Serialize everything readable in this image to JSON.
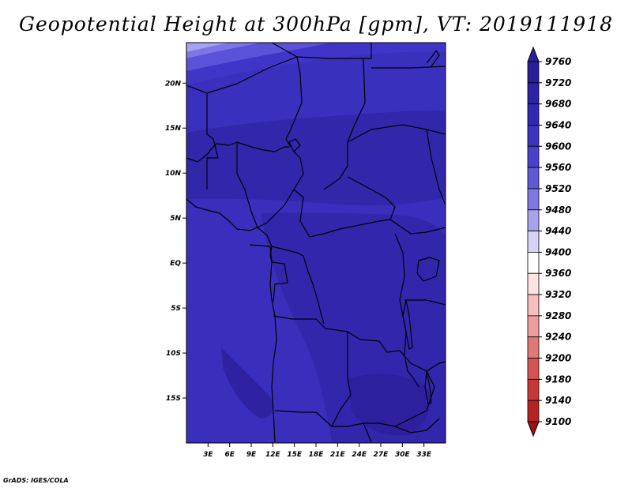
{
  "title": "Geopotential Height at 300hPa [gpm], VT: 2019111918",
  "credit": "GrADS: IGES/COLA",
  "map": {
    "lon_range": [
      0,
      36
    ],
    "lat_range": [
      -20,
      24.5
    ],
    "lat_ticks": [
      {
        "value": 20,
        "label": "20N"
      },
      {
        "value": 15,
        "label": "15N"
      },
      {
        "value": 10,
        "label": "10N"
      },
      {
        "value": 5,
        "label": "5N"
      },
      {
        "value": 0,
        "label": "EQ"
      },
      {
        "value": -5,
        "label": "5S"
      },
      {
        "value": -10,
        "label": "10S"
      },
      {
        "value": -15,
        "label": "15S"
      }
    ],
    "lon_ticks": [
      {
        "value": 3,
        "label": "3E"
      },
      {
        "value": 6,
        "label": "6E"
      },
      {
        "value": 9,
        "label": "9E"
      },
      {
        "value": 12,
        "label": "12E"
      },
      {
        "value": 15,
        "label": "15E"
      },
      {
        "value": 18,
        "label": "18E"
      },
      {
        "value": 21,
        "label": "21E"
      },
      {
        "value": 24,
        "label": "24E"
      },
      {
        "value": 27,
        "label": "27E"
      },
      {
        "value": 30,
        "label": "30E"
      },
      {
        "value": 33,
        "label": "33E"
      }
    ]
  },
  "colorbar": {
    "levels": [
      "9760",
      "9720",
      "9680",
      "9640",
      "9600",
      "9560",
      "9520",
      "9480",
      "9440",
      "9400",
      "9360",
      "9320",
      "9280",
      "9240",
      "9200",
      "9180",
      "9140",
      "9100"
    ],
    "colors": [
      "#2a1e9a",
      "#2e22a6",
      "#3427b4",
      "#3d32c2",
      "#4a40cc",
      "#6258d6",
      "#8078e0",
      "#a9a3ec",
      "#d6d3f7",
      "#ffffff",
      "#fde3e3",
      "#f8bebe",
      "#ef9c9c",
      "#e07878",
      "#d45454",
      "#c83636",
      "#b42222",
      "#9a1414"
    ]
  }
}
